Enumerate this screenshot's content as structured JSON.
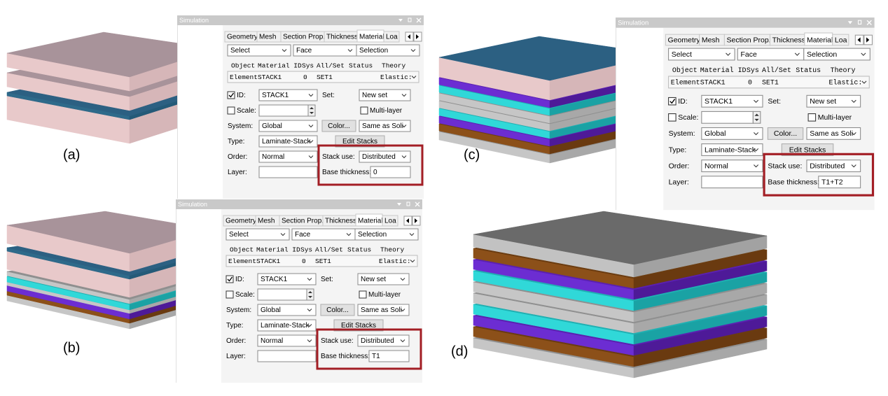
{
  "figure_labels": [
    "(a)",
    "(b)",
    "(c)",
    "(d)"
  ],
  "panels": [
    {
      "title": "Simulation",
      "tabs": [
        "Geometry",
        "Mesh",
        "Section Prop.",
        "Thickness",
        "Material",
        "Loa"
      ],
      "selectors": [
        "Select",
        "Face",
        "Selection"
      ],
      "table_header": [
        "Object",
        "Material ID",
        "Sys",
        "All/Set",
        "Status",
        "Theory"
      ],
      "table_row": [
        "Element",
        "STACK1",
        "0",
        "SET1",
        "Elastic:"
      ],
      "id_label": "ID:",
      "id_value": "STACK1",
      "set_label": "Set:",
      "set_value": "New set",
      "scale_label": "Scale:",
      "multi_layer": "Multi-layer",
      "system_label": "System:",
      "system_value": "Global",
      "color_button": "Color...",
      "color_value": "Same as Soli",
      "type_label": "Type:",
      "type_value": "Laminate-Stack",
      "edit_stacks": "Edit Stacks",
      "order_label": "Order:",
      "order_value": "Normal",
      "stack_use_label": "Stack use:",
      "stack_use_value": "Distributed",
      "layer_label": "Layer:",
      "base_thickness_label": "Base thickness:",
      "base_thickness_value": "0"
    },
    {
      "title": "Simulation",
      "tabs": [
        "Geometry",
        "Mesh",
        "Section Prop.",
        "Thickness",
        "Material",
        "Loa"
      ],
      "selectors": [
        "Select",
        "Face",
        "Selection"
      ],
      "table_header": [
        "Object",
        "Material ID",
        "Sys",
        "All/Set",
        "Status",
        "Theory"
      ],
      "table_row": [
        "Element",
        "STACK1",
        "0",
        "SET1",
        "Elastic:"
      ],
      "id_label": "ID:",
      "id_value": "STACK1",
      "set_label": "Set:",
      "set_value": "New set",
      "scale_label": "Scale:",
      "multi_layer": "Multi-layer",
      "system_label": "System:",
      "system_value": "Global",
      "color_button": "Color...",
      "color_value": "Same as Soli",
      "type_label": "Type:",
      "type_value": "Laminate-Stack",
      "edit_stacks": "Edit Stacks",
      "order_label": "Order:",
      "order_value": "Normal",
      "stack_use_label": "Stack use:",
      "stack_use_value": "Distributed",
      "layer_label": "Layer:",
      "base_thickness_label": "Base thickness:",
      "base_thickness_value": "T1"
    },
    {
      "title": "Simulation",
      "tabs": [
        "Geometry",
        "Mesh",
        "Section Prop.",
        "Thickness",
        "Material",
        "Loa"
      ],
      "selectors": [
        "Select",
        "Face",
        "Selection"
      ],
      "table_header": [
        "Object",
        "Material ID",
        "Sys",
        "All/Set",
        "Status",
        "Theory"
      ],
      "table_row": [
        "Element",
        "STACK1",
        "0",
        "SET1",
        "Elastic:"
      ],
      "id_label": "ID:",
      "id_value": "STACK1",
      "set_label": "Set:",
      "set_value": "New set",
      "scale_label": "Scale:",
      "multi_layer": "Multi-layer",
      "system_label": "System:",
      "system_value": "Global",
      "color_button": "Color...",
      "color_value": "Same as Soli",
      "type_label": "Type:",
      "type_value": "Laminate-Stack",
      "edit_stacks": "Edit Stacks",
      "order_label": "Order:",
      "order_value": "Normal",
      "stack_use_label": "Stack use:",
      "stack_use_value": "Distributed",
      "layer_label": "Layer:",
      "base_thickness_label": "Base thickness:",
      "base_thickness_value": "T1+T2"
    }
  ]
}
